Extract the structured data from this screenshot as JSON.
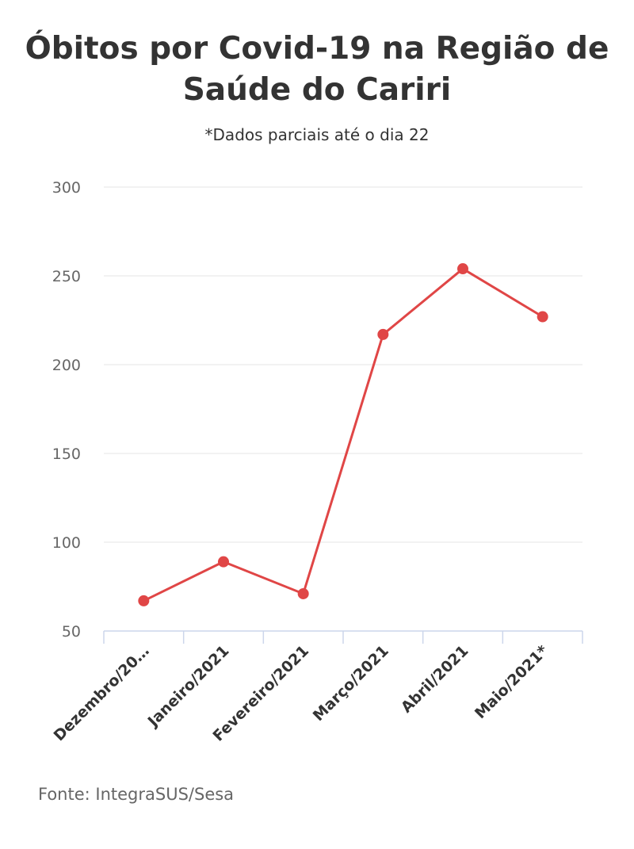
{
  "header": {
    "title": "Óbitos por Covid-19 na Região de Saúde do Cariri",
    "subtitle": "*Dados parciais até o dia 22"
  },
  "footer": {
    "source": "Fonte: IntegraSUS/Sesa"
  },
  "colors": {
    "series": "#e04646",
    "grid": "#e6e6e6",
    "axis": "#ccd6eb"
  },
  "chart_data": {
    "type": "line",
    "title": "Óbitos por Covid-19 na Região de Saúde do Cariri",
    "subtitle": "*Dados parciais até o dia 22",
    "categories": [
      "Dezembro/20…",
      "Janeiro/2021",
      "Fevereiro/2021",
      "Março/2021",
      "Abril/2021",
      "Maio/2021*"
    ],
    "series": [
      {
        "values": [
          67,
          89,
          71,
          217,
          254,
          227
        ]
      }
    ],
    "ylim": [
      50,
      300
    ],
    "yticks": [
      50,
      100,
      150,
      200,
      250,
      300
    ],
    "grid": true,
    "legend": "none"
  }
}
